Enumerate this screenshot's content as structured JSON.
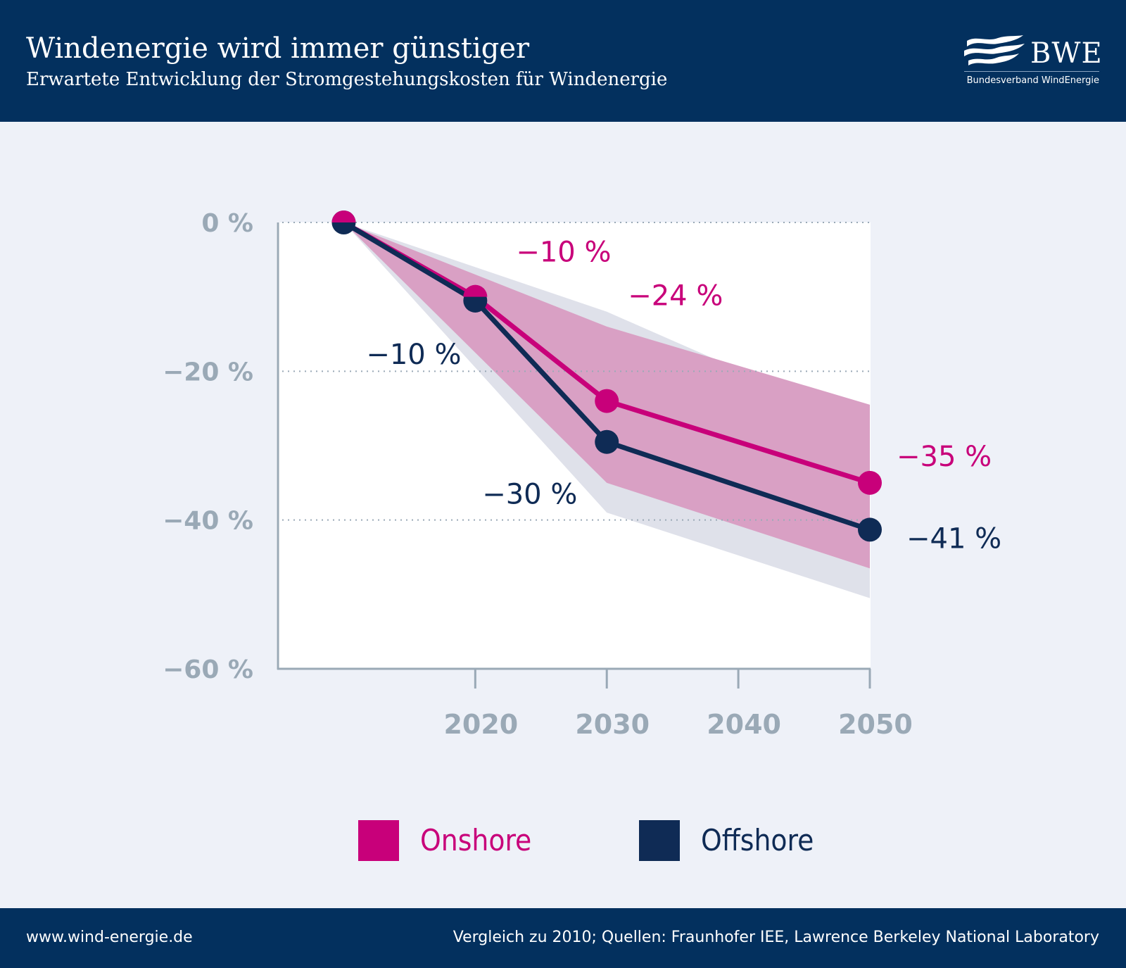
{
  "header": {
    "title": "Windenergie wird immer günstiger",
    "subtitle": "Erwartete Entwicklung der Stromgestehungskosten für Windenergie"
  },
  "logo": {
    "text": "BWE",
    "subtext": "Bundesverband WindEnergie"
  },
  "colors": {
    "navy": "#03305e",
    "onshore": "#c8007a",
    "offshore": "#0f2b55",
    "onshore_band": "#d9a0c4",
    "offshore_band": "#dfe1ea",
    "axis": "#9aa9b6",
    "background": "#eef1f8"
  },
  "chart_data": {
    "type": "line",
    "title": "Windenergie wird immer günstiger",
    "x": [
      2010,
      2020,
      2030,
      2050
    ],
    "xticks": [
      2020,
      2030,
      2040,
      2050
    ],
    "xtick_labels": [
      "2020",
      "2030",
      "2040",
      "2050"
    ],
    "xlim": [
      2005,
      2050
    ],
    "ylim": [
      -60,
      0
    ],
    "yticks": [
      0,
      -20,
      -40,
      -60
    ],
    "ytick_labels": [
      "0 %",
      "−20 %",
      "−40 %",
      "−60 %"
    ],
    "grid": "dotted at 0, −20 and −40",
    "series": [
      {
        "name": "Onshore",
        "values": [
          0,
          -10,
          -24,
          -35
        ],
        "labels": [
          "",
          "−10 %",
          "−24 %",
          "−35 %"
        ],
        "band": {
          "x": [
            2010,
            2030,
            2050
          ],
          "upper": [
            0,
            -14,
            -24.5
          ],
          "lower": [
            0,
            -35,
            -46.5
          ]
        }
      },
      {
        "name": "Offshore",
        "values": [
          0,
          -10.5,
          -29.5,
          -41.3
        ],
        "labels": [
          "",
          "−10 %",
          "−30 %",
          "−41 %"
        ],
        "band": {
          "x": [
            2010,
            2030,
            2050
          ],
          "upper": [
            0,
            -12,
            -27.5
          ],
          "lower": [
            0,
            -39,
            -50.5
          ]
        }
      }
    ],
    "legend": [
      "Onshore",
      "Offshore"
    ]
  },
  "footer": {
    "website": "www.wind-energie.de",
    "source": "Vergleich zu 2010; Quellen: Fraunhofer IEE, Lawrence Berkeley National Laboratory"
  }
}
